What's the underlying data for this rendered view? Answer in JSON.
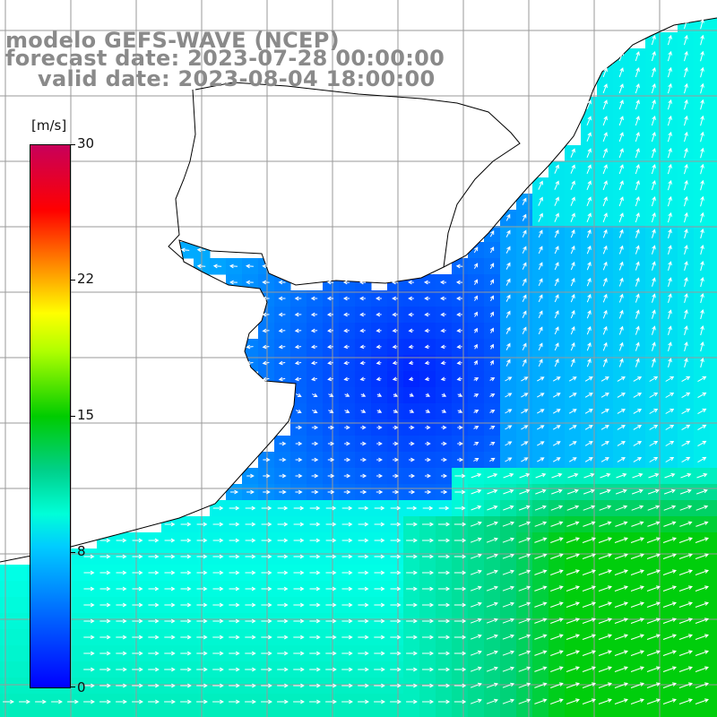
{
  "title": {
    "line1": "modelo GEFS-WAVE (NCEP)",
    "line2": "forecast date: 2023-07-28 00:00:00",
    "line3": "valid date: 2023-08-04 18:00:00"
  },
  "colorbar": {
    "units": "[m/s]",
    "ticks": [
      "30",
      "22",
      "15",
      "8",
      "0"
    ],
    "tick_values": [
      30,
      22,
      15,
      8,
      0
    ],
    "min": 0,
    "max": 30,
    "colors": [
      "#0000ff",
      "#0064ff",
      "#00ccff",
      "#00ffd8",
      "#00d08a",
      "#00cc00",
      "#b0ff00",
      "#ffff00",
      "#ff8800",
      "#ff0000",
      "#c8005a"
    ]
  },
  "map": {
    "land_color": "#ffffff",
    "grid_color": "#9a9a9a",
    "coast_color": "#000000",
    "arrow_color": "#ffffff"
  }
}
